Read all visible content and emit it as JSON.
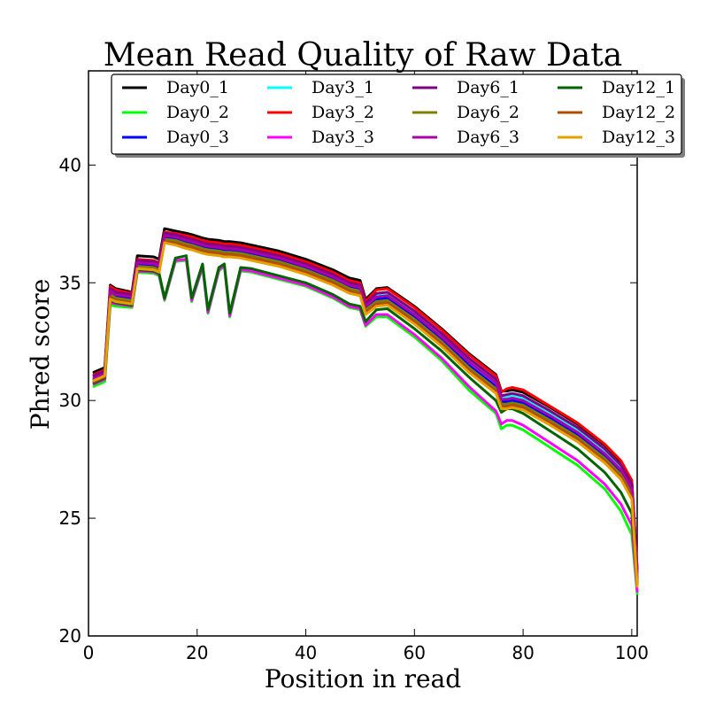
{
  "chart_data": {
    "type": "line",
    "title": "Mean Read Quality of Raw Data",
    "xlabel": "Position in read",
    "ylabel": "Phred score",
    "xlim": [
      0,
      101
    ],
    "ylim": [
      20,
      44
    ],
    "xticks": [
      0,
      20,
      40,
      60,
      80,
      100
    ],
    "yticks": [
      20,
      25,
      30,
      35,
      40
    ],
    "grid": false,
    "legend_position": "top",
    "legend_columns": 4,
    "x": [
      1,
      3,
      4,
      5,
      8,
      9,
      12,
      13,
      14,
      16,
      18,
      19,
      21,
      22,
      24,
      25,
      26,
      28,
      30,
      35,
      40,
      45,
      48,
      50,
      51,
      53,
      55,
      60,
      65,
      70,
      75,
      76,
      77,
      78,
      80,
      85,
      90,
      95,
      98,
      100,
      101
    ],
    "series": [
      {
        "name": "Day0_1",
        "color": "#000000",
        "values": [
          31.2,
          31.4,
          34.9,
          34.75,
          34.6,
          36.15,
          36.1,
          36.0,
          37.3,
          37.2,
          37.1,
          37.05,
          36.9,
          36.85,
          36.8,
          36.75,
          36.75,
          36.7,
          36.6,
          36.35,
          36.0,
          35.55,
          35.2,
          35.1,
          34.3,
          34.75,
          34.8,
          34.0,
          33.05,
          32.0,
          31.1,
          30.4,
          30.4,
          30.45,
          30.35,
          29.7,
          29.0,
          28.1,
          27.4,
          26.6,
          22.8
        ]
      },
      {
        "name": "Day0_2",
        "color": "#00ff00",
        "values": [
          30.6,
          30.8,
          34.05,
          34.0,
          33.95,
          35.45,
          35.4,
          35.3,
          34.25,
          35.9,
          35.95,
          34.2,
          35.65,
          33.7,
          35.5,
          35.7,
          33.55,
          35.5,
          35.45,
          35.15,
          34.85,
          34.35,
          33.95,
          33.85,
          33.15,
          33.55,
          33.55,
          32.7,
          31.7,
          30.45,
          29.45,
          28.8,
          28.95,
          28.95,
          28.75,
          28.0,
          27.25,
          26.25,
          25.3,
          24.3,
          21.8
        ]
      },
      {
        "name": "Day0_3",
        "color": "#0000ff",
        "values": [
          30.9,
          31.1,
          34.55,
          34.4,
          34.3,
          35.75,
          35.7,
          35.6,
          36.9,
          36.85,
          36.7,
          36.65,
          36.5,
          36.45,
          36.4,
          36.35,
          36.35,
          36.3,
          36.2,
          35.95,
          35.6,
          35.15,
          34.8,
          34.7,
          33.9,
          34.3,
          34.35,
          33.55,
          32.6,
          31.5,
          30.6,
          29.95,
          29.95,
          30.0,
          29.9,
          29.25,
          28.55,
          27.65,
          26.95,
          26.1,
          22.4
        ]
      },
      {
        "name": "Day3_1",
        "color": "#00ffff",
        "values": [
          31.0,
          31.2,
          34.7,
          34.55,
          34.45,
          35.9,
          35.85,
          35.75,
          37.05,
          37.0,
          36.85,
          36.8,
          36.65,
          36.6,
          36.55,
          36.5,
          36.5,
          36.45,
          36.35,
          36.1,
          35.75,
          35.3,
          34.95,
          34.85,
          34.05,
          34.5,
          34.55,
          33.75,
          32.8,
          31.75,
          30.85,
          30.15,
          30.15,
          30.2,
          30.1,
          29.45,
          28.75,
          27.85,
          27.15,
          26.35,
          22.6
        ]
      },
      {
        "name": "Day3_2",
        "color": "#ff0000",
        "values": [
          31.1,
          31.3,
          34.85,
          34.7,
          34.55,
          36.0,
          35.95,
          35.85,
          37.15,
          37.1,
          37.0,
          36.95,
          36.8,
          36.75,
          36.7,
          36.65,
          36.65,
          36.6,
          36.5,
          36.25,
          35.9,
          35.45,
          35.1,
          35.0,
          34.2,
          34.7,
          34.75,
          33.95,
          33.0,
          31.95,
          31.05,
          30.35,
          30.5,
          30.55,
          30.45,
          29.75,
          29.05,
          28.15,
          27.45,
          26.6,
          22.9
        ]
      },
      {
        "name": "Day3_3",
        "color": "#ff00ff",
        "values": [
          30.7,
          30.9,
          34.15,
          34.1,
          34.0,
          35.5,
          35.45,
          35.35,
          34.3,
          35.95,
          36.0,
          34.25,
          35.7,
          33.75,
          35.55,
          35.75,
          33.6,
          35.55,
          35.5,
          35.2,
          34.9,
          34.4,
          34.0,
          33.9,
          33.2,
          33.65,
          33.65,
          32.8,
          31.8,
          30.6,
          29.55,
          29.0,
          29.15,
          29.15,
          28.95,
          28.2,
          27.45,
          26.45,
          25.6,
          24.7,
          21.9
        ]
      },
      {
        "name": "Day6_1",
        "color": "#800080",
        "values": [
          31.05,
          31.25,
          34.75,
          34.6,
          34.5,
          35.95,
          35.9,
          35.8,
          37.1,
          37.05,
          36.9,
          36.85,
          36.7,
          36.65,
          36.6,
          36.55,
          36.55,
          36.5,
          36.4,
          36.15,
          35.8,
          35.35,
          35.0,
          34.9,
          34.1,
          34.55,
          34.6,
          33.8,
          32.85,
          31.8,
          30.9,
          30.2,
          30.25,
          30.3,
          30.2,
          29.55,
          28.85,
          27.95,
          27.25,
          26.45,
          22.7
        ]
      },
      {
        "name": "Day6_2",
        "color": "#808000",
        "values": [
          30.85,
          31.05,
          34.5,
          34.35,
          34.25,
          35.7,
          35.65,
          35.55,
          36.85,
          36.8,
          36.65,
          36.6,
          36.45,
          36.4,
          36.35,
          36.3,
          36.3,
          36.25,
          36.15,
          35.9,
          35.55,
          35.1,
          34.75,
          34.65,
          33.85,
          34.2,
          34.25,
          33.45,
          32.5,
          31.4,
          30.5,
          29.85,
          29.85,
          29.9,
          29.8,
          29.15,
          28.45,
          27.55,
          26.85,
          26.0,
          22.3
        ]
      },
      {
        "name": "Day6_3",
        "color": "#aa00aa",
        "values": [
          30.95,
          31.15,
          34.65,
          34.5,
          34.4,
          35.85,
          35.8,
          35.7,
          37.0,
          36.95,
          36.8,
          36.75,
          36.6,
          36.55,
          36.5,
          36.45,
          36.45,
          36.4,
          36.3,
          36.05,
          35.7,
          35.25,
          34.9,
          34.8,
          34.0,
          34.4,
          34.45,
          33.65,
          32.7,
          31.65,
          30.75,
          30.05,
          30.05,
          30.1,
          30.0,
          29.35,
          28.65,
          27.75,
          27.05,
          26.25,
          22.5
        ]
      },
      {
        "name": "Day12_1",
        "color": "#006400",
        "values": [
          30.75,
          30.95,
          34.25,
          34.15,
          34.05,
          35.55,
          35.5,
          35.4,
          34.35,
          36.05,
          36.15,
          34.35,
          35.8,
          33.85,
          35.65,
          35.8,
          33.7,
          35.65,
          35.6,
          35.3,
          35.0,
          34.5,
          34.1,
          34.0,
          33.35,
          33.85,
          33.9,
          33.05,
          32.1,
          31.0,
          30.0,
          29.5,
          29.65,
          29.65,
          29.45,
          28.7,
          27.95,
          26.95,
          26.1,
          25.2,
          22.1
        ]
      },
      {
        "name": "Day12_2",
        "color": "#b24c00",
        "values": [
          30.8,
          31.0,
          34.4,
          34.25,
          34.15,
          35.6,
          35.55,
          35.45,
          36.75,
          36.7,
          36.55,
          36.5,
          36.35,
          36.3,
          36.25,
          36.2,
          36.2,
          36.15,
          36.05,
          35.8,
          35.45,
          35.0,
          34.65,
          34.55,
          33.75,
          34.1,
          34.15,
          33.35,
          32.4,
          31.3,
          30.4,
          29.75,
          29.75,
          29.8,
          29.7,
          29.05,
          28.35,
          27.45,
          26.75,
          25.9,
          22.2
        ]
      },
      {
        "name": "Day12_3",
        "color": "#e6a000",
        "values": [
          30.85,
          31.05,
          34.3,
          34.2,
          34.1,
          35.6,
          35.55,
          35.45,
          36.7,
          36.6,
          36.45,
          36.4,
          36.25,
          36.2,
          36.15,
          36.1,
          36.1,
          36.05,
          35.95,
          35.7,
          35.35,
          34.9,
          34.55,
          34.45,
          33.65,
          34.0,
          34.05,
          33.25,
          32.3,
          31.2,
          30.3,
          29.65,
          29.65,
          29.7,
          29.6,
          28.95,
          28.25,
          27.35,
          26.65,
          25.8,
          22.1
        ]
      }
    ]
  }
}
